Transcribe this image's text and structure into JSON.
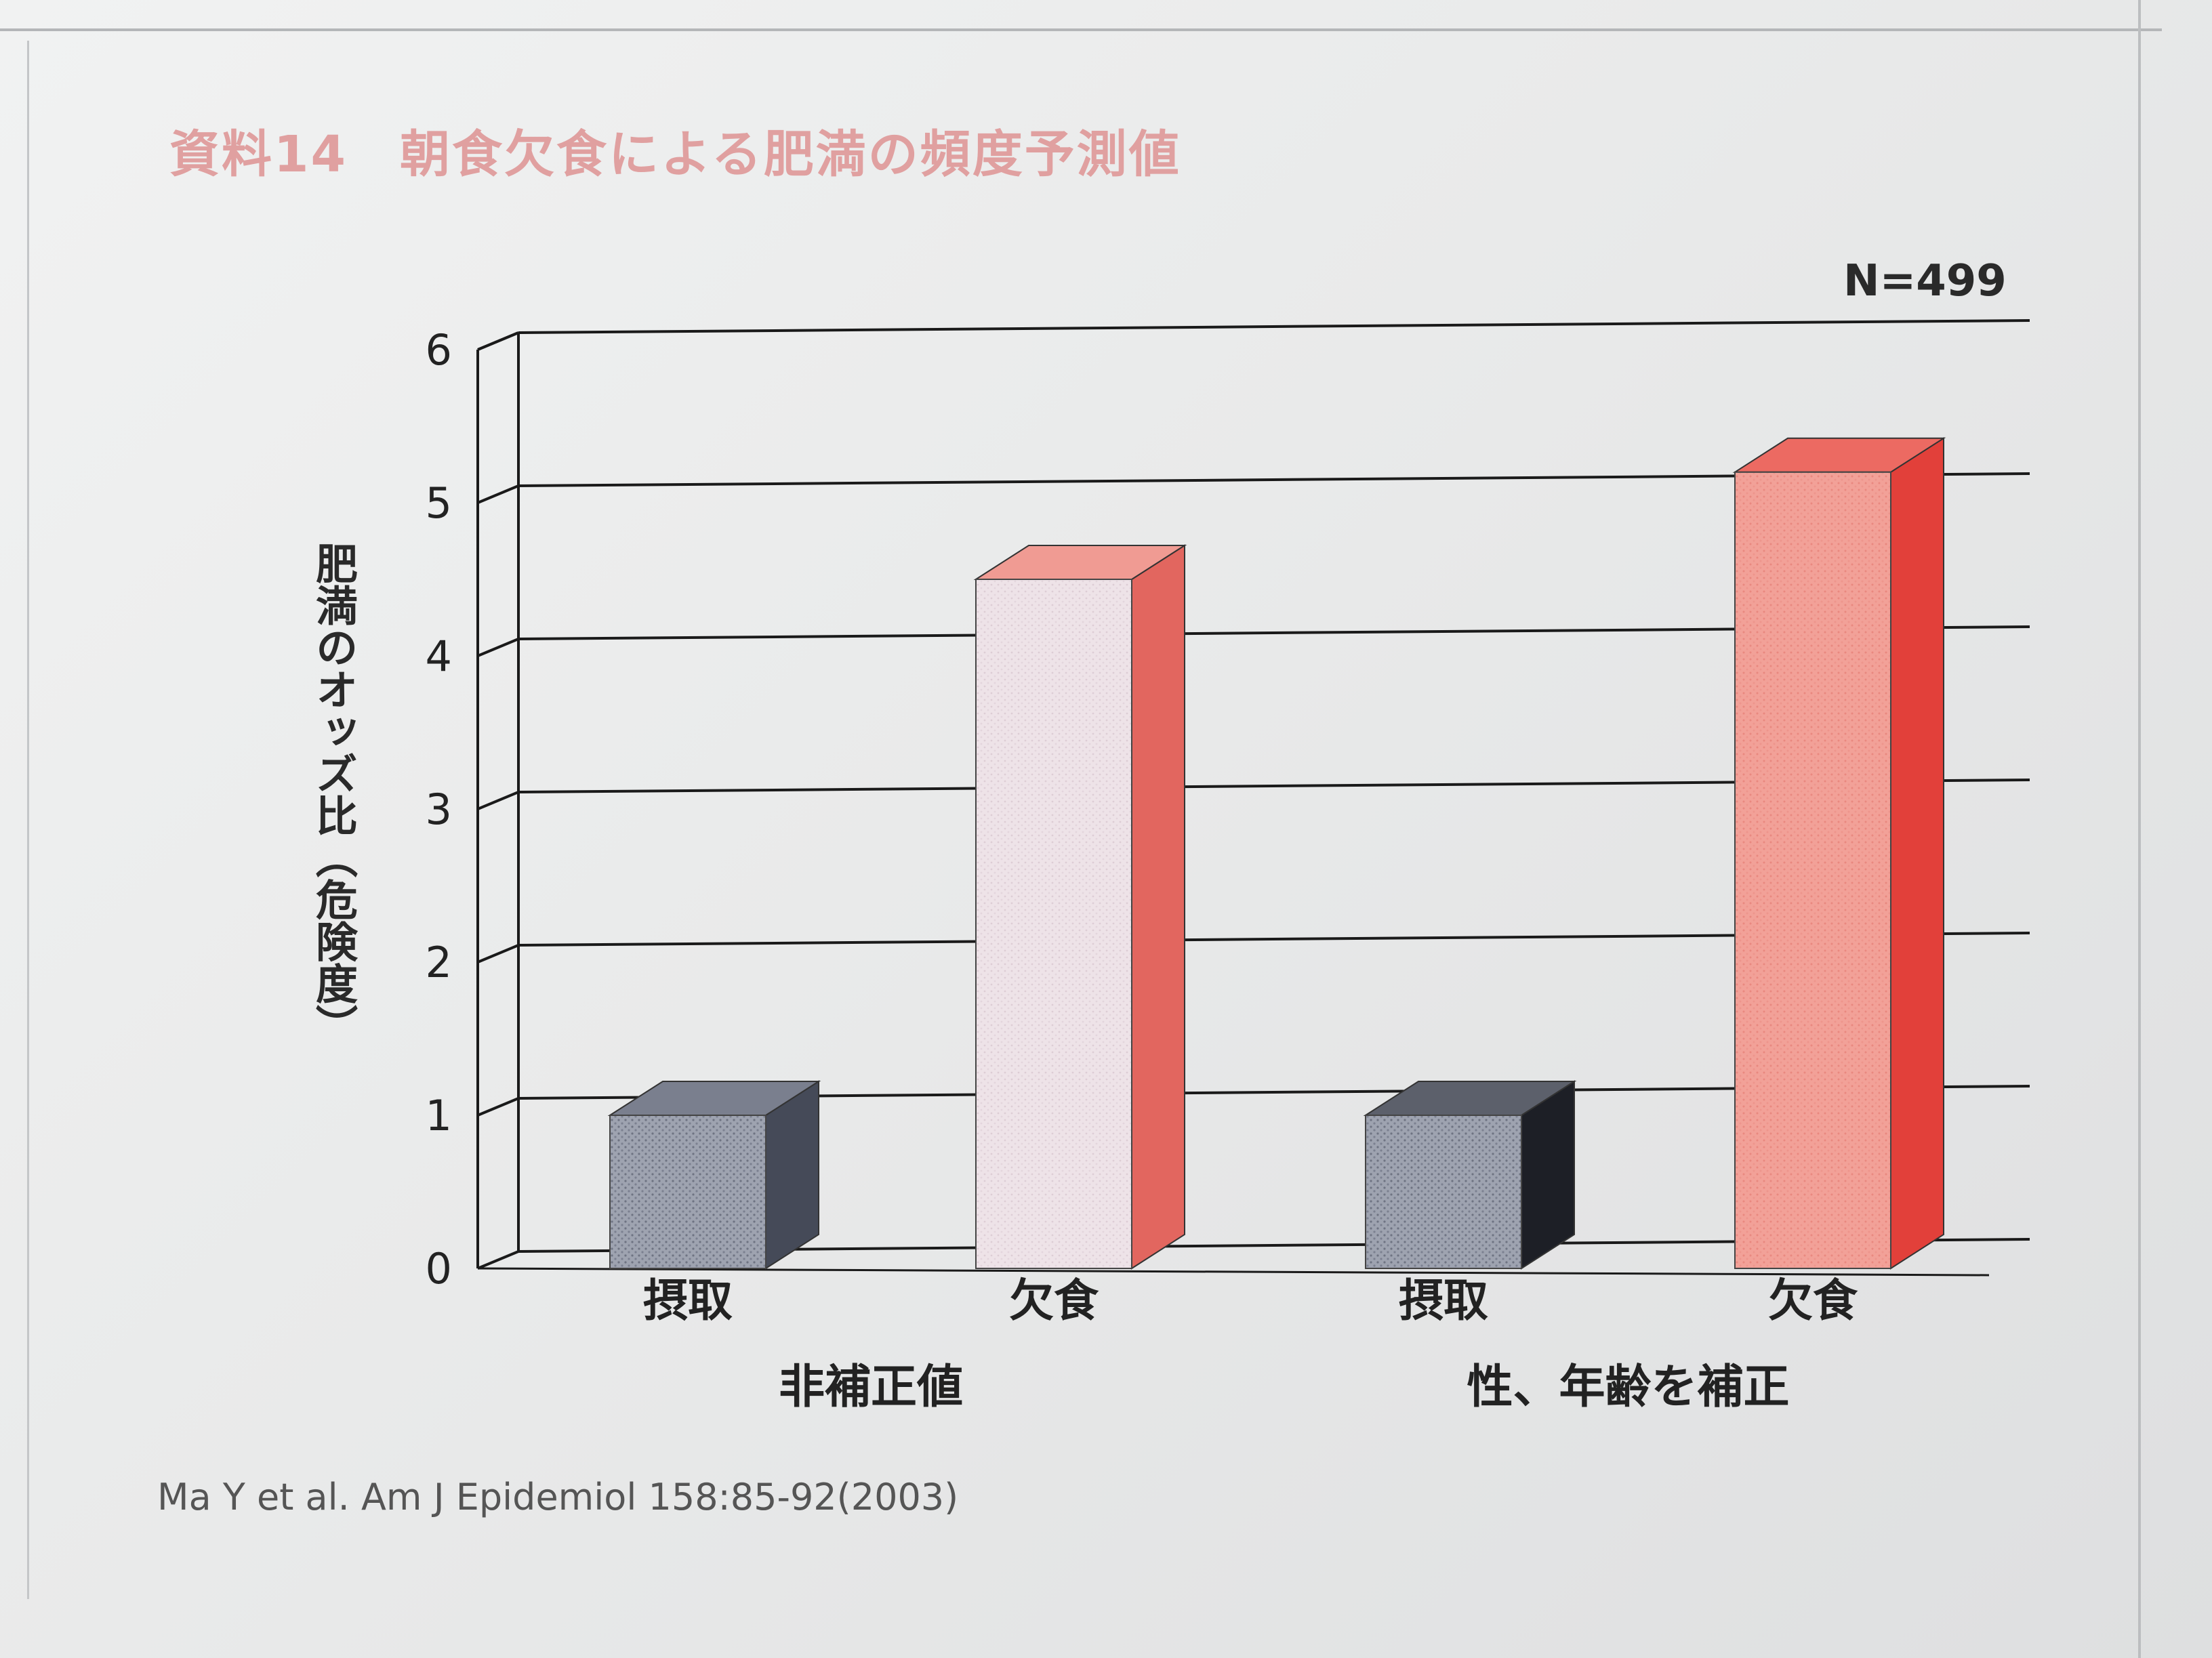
{
  "title": "資料14　朝食欠食による肥満の頻度予測値",
  "n_label": "N=499",
  "citation": "Ma Y et al. Am J Epidemiol 158:85-92(2003)",
  "colors": {
    "intake": "#8a8f9c",
    "skip": "#ee8f87",
    "skip_light": "#ecdfe4",
    "grid": "#1a1a1a"
  },
  "chart_data": {
    "type": "bar",
    "title": "",
    "ylabel": "肥満のオッズ比（危険度）",
    "xlabel": "",
    "ylim": [
      0,
      6
    ],
    "yticks": [
      "0",
      "1",
      "2",
      "3",
      "4",
      "5",
      "6"
    ],
    "grid": true,
    "groups": [
      {
        "label": "非補正値",
        "bars": [
          {
            "label": "摂取",
            "value": 1.0
          },
          {
            "label": "欠食",
            "value": 4.5
          }
        ]
      },
      {
        "label": "性、年齢を補正",
        "bars": [
          {
            "label": "摂取",
            "value": 1.0
          },
          {
            "label": "欠食",
            "value": 5.2
          }
        ]
      }
    ]
  }
}
